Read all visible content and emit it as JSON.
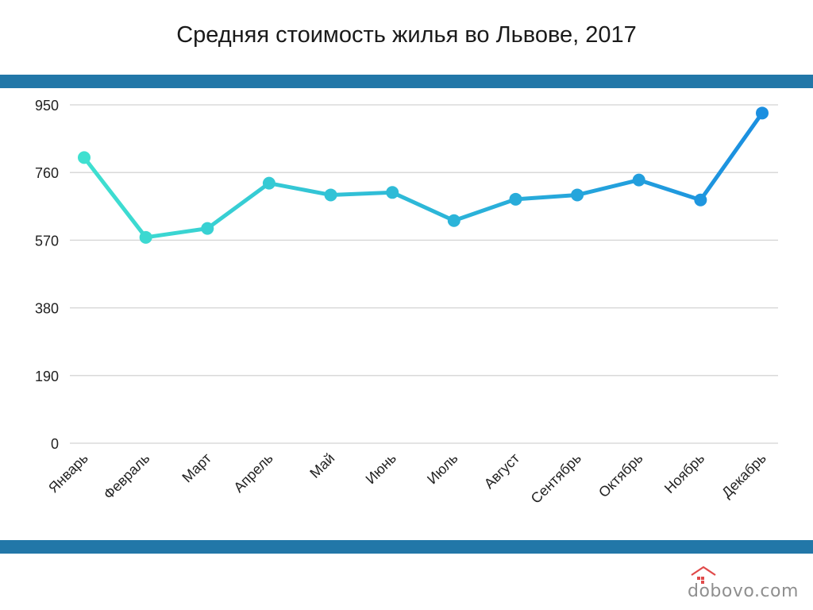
{
  "header": {
    "title": "Средняя стоимость жилья во Львове, 2017"
  },
  "logo": {
    "text": "dobovo.com"
  },
  "colors": {
    "band": "#2277a8",
    "grid": "#d4d4d4",
    "line_start": "#3fe0d0",
    "line_end": "#1b8fe0"
  },
  "chart_data": {
    "type": "line",
    "title": "Средняя стоимость жилья во Львове, 2017",
    "xlabel": "",
    "ylabel": "",
    "ylim": [
      0,
      950
    ],
    "yticks": [
      0,
      190,
      380,
      570,
      760,
      950
    ],
    "grid": true,
    "categories": [
      "Январь",
      "Февраль",
      "Март",
      "Апрель",
      "Май",
      "Июнь",
      "Июль",
      "Август",
      "Сентябрь",
      "Октябрь",
      "Ноябрь",
      "Декабрь"
    ],
    "values": [
      802,
      578,
      603,
      730,
      697,
      704,
      625,
      685,
      697,
      739,
      683,
      927
    ]
  }
}
